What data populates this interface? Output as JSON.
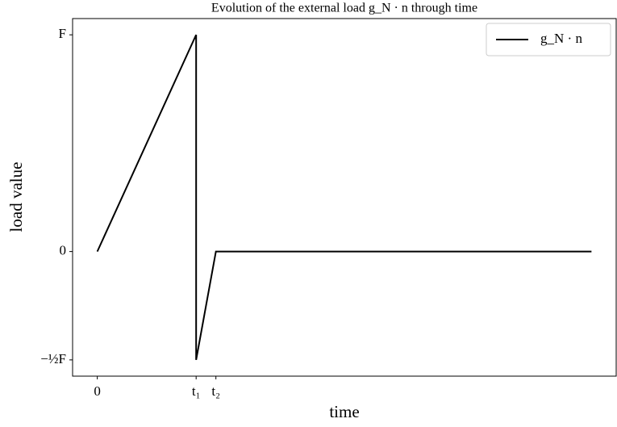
{
  "chart_data": {
    "type": "line",
    "title": "Evolution of the external load g_N · n through time",
    "xlabel": "time",
    "ylabel": "load value",
    "x": [
      0,
      1,
      1,
      1.2,
      5
    ],
    "series": [
      {
        "name": "g_N · n",
        "color": "#000000",
        "values": [
          0,
          1,
          -0.5,
          0,
          0
        ]
      }
    ],
    "xlim": [
      -0.25,
      5.25
    ],
    "xticks": [
      0,
      {
        "value": 1,
        "label": "t₁"
      },
      {
        "value": 1.2,
        "label": "t₂"
      }
    ],
    "ylim": [
      -0.575,
      1.075
    ],
    "yticks": [
      {
        "value": -0.5,
        "label": "−½F"
      },
      0,
      {
        "value": 1,
        "label": "F"
      }
    ],
    "legend": "upper right"
  }
}
